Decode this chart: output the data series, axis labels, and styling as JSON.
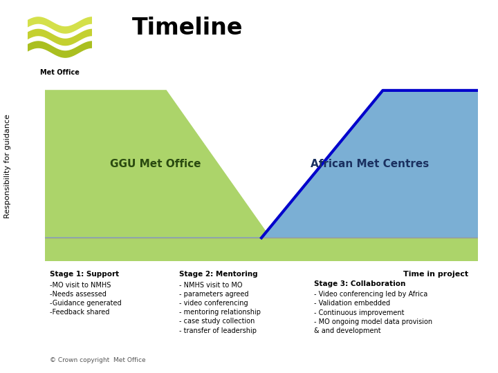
{
  "title": "Timeline",
  "ylabel": "Responsibility for guidance",
  "green_color": "#acd46a",
  "green_dark": "#7db83a",
  "blue_color": "#0000cc",
  "blue_fill": "#7bafd4",
  "ggu_label": "GGU Met Office",
  "african_label": "African Met Centres",
  "stage1_title": "Stage 1: Support",
  "stage1_bullets": [
    "-MO visit to NMHS",
    "-Needs assessed",
    "-Guidance generated",
    "-Feedback shared"
  ],
  "stage2_title": "Stage 2: Mentoring",
  "stage2_bullets": [
    "- NMHS visit to MO",
    "- parameters agreed",
    "- video conferencing",
    "- mentoring relationship",
    "- case study collection",
    "- transfer of leadership"
  ],
  "stage3_title": "Stage 3: Collaboration",
  "stage3_bullets": [
    "- Video conferencing led by Africa",
    "- Validation embedded",
    "- Continuous improvement",
    "- MO ongoing model data provision",
    "& and development"
  ],
  "time_label": "Time in project",
  "copyright": "© Crown copyright  Met Office",
  "background": "#ffffff",
  "logo_color1": "#c8d400",
  "logo_color2": "#b0be00",
  "logo_color3": "#98a800"
}
